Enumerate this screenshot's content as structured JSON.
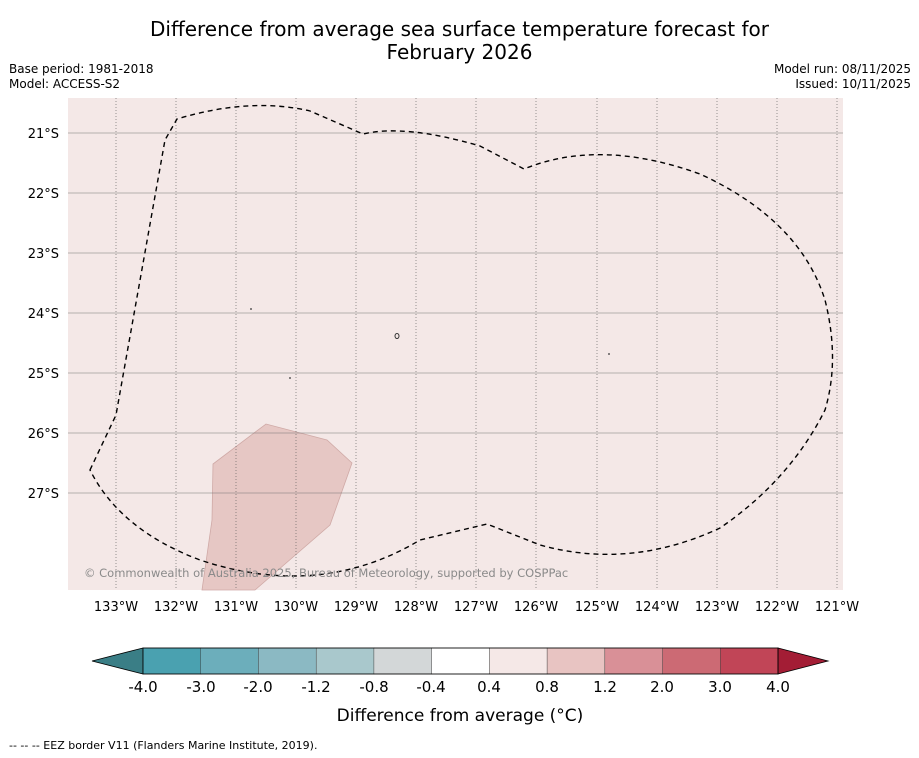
{
  "title": {
    "line1": "Difference from average sea surface temperature forecast for",
    "line2": "February 2026"
  },
  "meta": {
    "base_period": "Base period: 1981-2018",
    "model": "Model: ACCESS-S2",
    "model_run": "Model run: 08/11/2025",
    "issued": "Issued: 10/11/2025"
  },
  "map": {
    "lat_labels": [
      "21°S",
      "22°S",
      "23°S",
      "24°S",
      "25°S",
      "26°S",
      "27°S"
    ],
    "lon_labels": [
      "133°W",
      "132°W",
      "131°W",
      "130°W",
      "129°W",
      "128°W",
      "127°W",
      "126°W",
      "125°W",
      "124°W",
      "123°W",
      "122°W",
      "121°W"
    ],
    "copyright": "© Commonwealth of Australia 2025, Bureau of Meteorology, supported by COSPPac",
    "background_color": "#f4e8e7",
    "anomaly_patch_color": "#e6c7c4",
    "eez_border_name": "EEZ border"
  },
  "colorbar": {
    "ticks": [
      "-4.0",
      "-3.0",
      "-2.0",
      "-1.2",
      "-0.8",
      "-0.4",
      "0.4",
      "0.8",
      "1.2",
      "2.0",
      "3.0",
      "4.0"
    ],
    "under_color": "#3a7e86",
    "over_color": "#a31d35",
    "colors": [
      "#4aa1b0",
      "#6caebb",
      "#8bb9c3",
      "#a9c8cc",
      "#d3d7d8",
      "#ffffff",
      "#f5e8e7",
      "#e8c4c2",
      "#d99097",
      "#cc6a74",
      "#c14557"
    ],
    "label": "Difference from average (°C)"
  },
  "footer": {
    "note": "--  --  -- EEZ border V11 (Flanders Marine Institute, 2019)."
  }
}
